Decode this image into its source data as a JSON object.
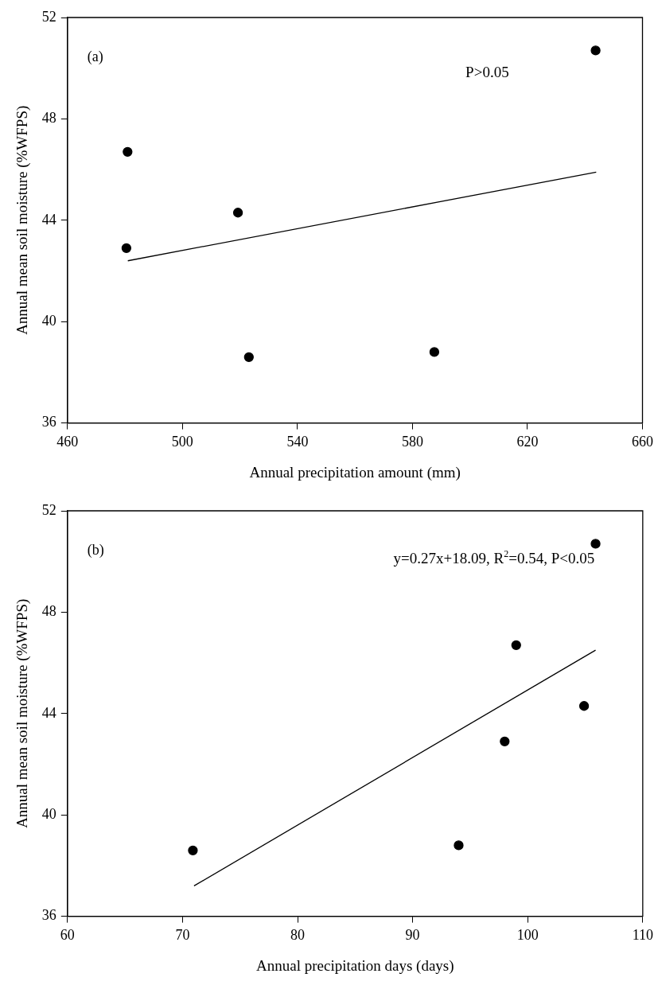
{
  "chart_data": [
    {
      "type": "scatter",
      "xlabel": "Annual precipitation amount (mm)",
      "ylabel": "Annual mean soil moisture (%WFPS)",
      "xlim": [
        460,
        660
      ],
      "xticks": [
        460,
        500,
        540,
        580,
        620,
        660
      ],
      "ylim": [
        36,
        52
      ],
      "yticks": [
        36,
        40,
        44,
        48,
        52
      ],
      "grid": false,
      "legend": false,
      "marker": "circle",
      "annotations": [
        "(a)",
        "P>0.05"
      ],
      "series": [
        {
          "color": "#000000",
          "x": [
            480.9,
            480.5,
            519.3,
            523.1,
            587.6,
            643.7
          ],
          "values": [
            46.7,
            42.9,
            44.3,
            38.6,
            38.8,
            50.7
          ]
        },
        {
          "type": "line",
          "color": "#000000",
          "marker": "none",
          "line_style": "solid",
          "x": [
            481,
            643.9
          ],
          "values": [
            42.4,
            45.9
          ]
        }
      ]
    },
    {
      "type": "scatter",
      "xlabel": "Annual precipitation days (days)",
      "ylabel": "Annual mean soil moisture (%WFPS)",
      "xlim": [
        60,
        110
      ],
      "xticks": [
        60,
        70,
        80,
        90,
        100,
        110
      ],
      "ylim": [
        36,
        52
      ],
      "yticks": [
        36,
        40,
        44,
        48,
        52
      ],
      "grid": false,
      "legend": false,
      "marker": "circle",
      "annotations": [
        "(b)",
        "y=0.27x+18.09, R$^{2}$=0.54, P<0.05"
      ],
      "series": [
        {
          "color": "#000000",
          "x": [
            70.9,
            94.0,
            98.0,
            99.0,
            104.9,
            105.9
          ],
          "values": [
            38.6,
            38.8,
            42.9,
            46.7,
            44.3,
            50.7
          ]
        },
        {
          "type": "line",
          "color": "#000000",
          "marker": "none",
          "line_style": "solid",
          "x": [
            71,
            105.9
          ],
          "values": [
            37.2,
            46.5
          ]
        }
      ]
    }
  ]
}
